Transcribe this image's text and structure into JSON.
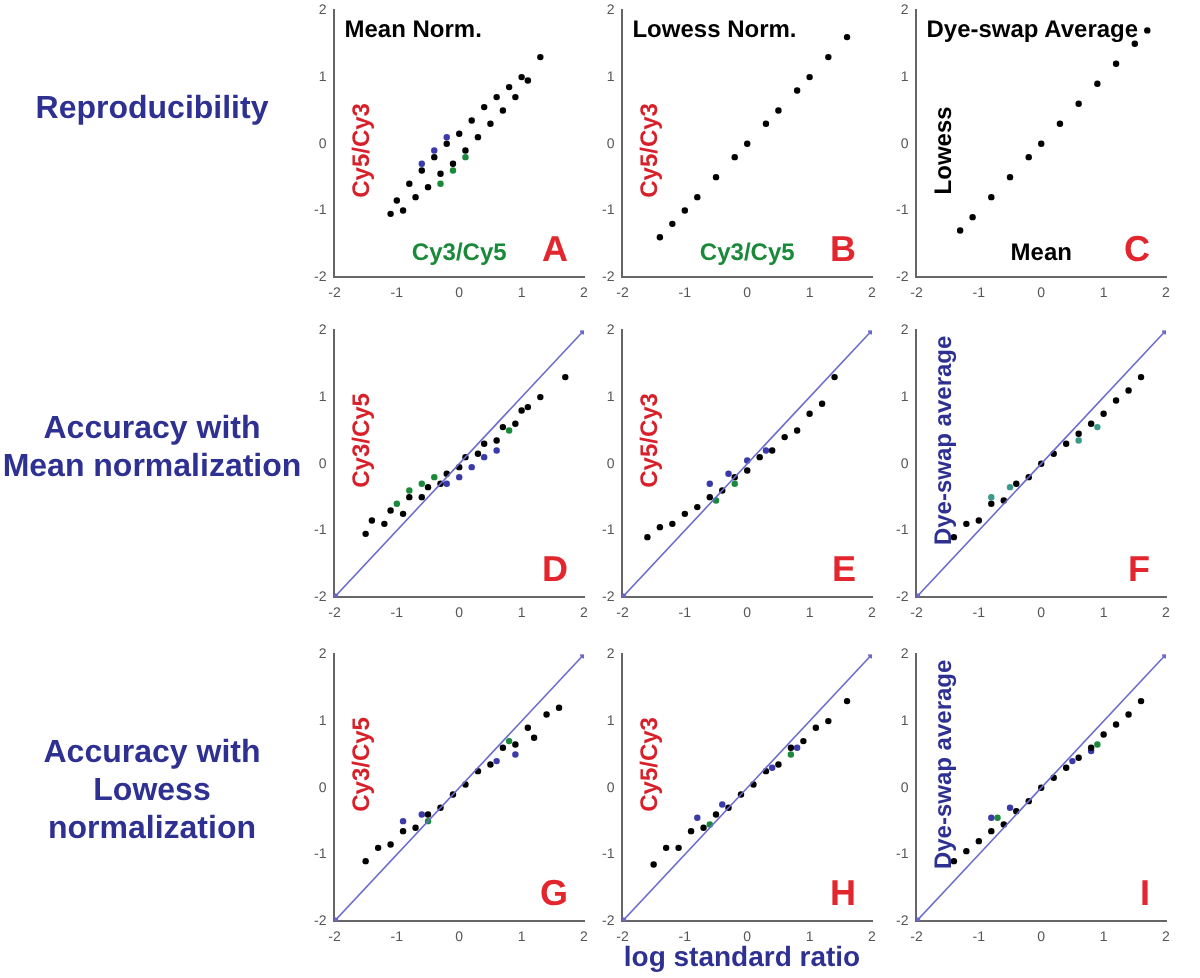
{
  "chart_data": [
    {
      "type": "scatter",
      "title": "Mean Norm.",
      "xlabel": "Cy3/Cy5",
      "ylabel": "Cy5/Cy3",
      "annotations": [
        "A",
        "Reproducibility"
      ],
      "xlim": [
        -2,
        2
      ],
      "ylim": [
        -2,
        2
      ],
      "xticks": [
        -2,
        -1,
        0,
        1,
        2
      ],
      "yticks": [
        -2,
        -1,
        0,
        1,
        2
      ],
      "grid": false,
      "legend": false,
      "marker": "circle",
      "series": [
        {
          "color": "#000000",
          "x": [
            -1.1,
            -1,
            -0.9,
            -0.8,
            -0.7,
            -0.6,
            -0.5,
            -0.4,
            -0.3,
            -0.2,
            -0.1,
            0,
            0.1,
            0.2,
            0.3,
            0.4,
            0.5,
            0.6,
            0.7,
            0.8,
            0.9,
            1.0,
            1.1,
            1.3
          ],
          "values": [
            -1.05,
            -0.85,
            -1.0,
            -0.6,
            -0.8,
            -0.4,
            -0.65,
            -0.2,
            -0.45,
            0,
            -0.3,
            0.15,
            -0.1,
            0.35,
            0.1,
            0.55,
            0.3,
            0.7,
            0.5,
            0.85,
            0.7,
            1.0,
            0.95,
            1.3
          ]
        },
        {
          "color": "#3a3aa8",
          "x": [
            -0.6,
            -0.4,
            -0.2
          ],
          "values": [
            -0.3,
            -0.1,
            0.1
          ]
        },
        {
          "color": "#1a8a3a",
          "x": [
            -0.3,
            -0.1,
            0.1
          ],
          "values": [
            -0.6,
            -0.4,
            -0.2
          ]
        }
      ]
    },
    {
      "type": "scatter",
      "title": "Lowess Norm.",
      "xlabel": "Cy3/Cy5",
      "ylabel": "Cy5/Cy3",
      "annotations": [
        "B"
      ],
      "xlim": [
        -2,
        2
      ],
      "ylim": [
        -2,
        2
      ],
      "xticks": [
        -2,
        -1,
        0,
        1,
        2
      ],
      "yticks": [
        -2,
        -1,
        0,
        1,
        2
      ],
      "grid": false,
      "legend": false,
      "marker": "circle",
      "series": [
        {
          "color": "#000000",
          "x": [
            -1.4,
            -1.2,
            -1,
            -0.8,
            -0.5,
            -0.2,
            0,
            0.3,
            0.5,
            0.8,
            1,
            1.3,
            1.6
          ],
          "values": [
            -1.4,
            -1.2,
            -1,
            -0.8,
            -0.5,
            -0.2,
            0,
            0.3,
            0.5,
            0.8,
            1,
            1.3,
            1.6
          ]
        }
      ]
    },
    {
      "type": "scatter",
      "title": "Dye-swap Average",
      "xlabel": "Mean",
      "ylabel": "Lowess",
      "annotations": [
        "C"
      ],
      "xlim": [
        -2,
        2
      ],
      "ylim": [
        -2,
        2
      ],
      "xticks": [
        -2,
        -1,
        0,
        1,
        2
      ],
      "yticks": [
        -2,
        -1,
        0,
        1,
        2
      ],
      "grid": false,
      "legend": false,
      "marker": "circle",
      "series": [
        {
          "color": "#000000",
          "x": [
            -1.3,
            -1.1,
            -0.8,
            -0.5,
            -0.2,
            0,
            0.3,
            0.6,
            0.9,
            1.2,
            1.5,
            1.7
          ],
          "values": [
            -1.3,
            -1.1,
            -0.8,
            -0.5,
            -0.2,
            0,
            0.3,
            0.6,
            0.9,
            1.2,
            1.5,
            1.7
          ]
        }
      ]
    },
    {
      "type": "scatter",
      "ylabel": "Cy3/Cy5",
      "annotations": [
        "D",
        "Accuracy with Mean normalization"
      ],
      "xlim": [
        -2,
        2
      ],
      "ylim": [
        -2,
        2
      ],
      "xticks": [
        -2,
        -1,
        0,
        1,
        2
      ],
      "yticks": [
        -2,
        -1,
        0,
        1,
        2
      ],
      "grid": false,
      "legend": false,
      "marker": "circle",
      "series": [
        {
          "type": "line",
          "color": "#6a6acc",
          "x": [
            -2,
            2
          ],
          "values": [
            -2,
            2
          ]
        },
        {
          "color": "#000000",
          "x": [
            -1.5,
            -1.4,
            -1.2,
            -1.1,
            -0.9,
            -0.8,
            -0.6,
            -0.5,
            -0.3,
            -0.2,
            0,
            0.1,
            0.3,
            0.4,
            0.6,
            0.7,
            0.9,
            1.0,
            1.1,
            1.3,
            1.7
          ],
          "values": [
            -1.05,
            -0.85,
            -0.9,
            -0.7,
            -0.75,
            -0.5,
            -0.5,
            -0.35,
            -0.3,
            -0.15,
            -0.05,
            0.1,
            0.15,
            0.3,
            0.35,
            0.55,
            0.6,
            0.8,
            0.85,
            1.0,
            1.3
          ]
        },
        {
          "color": "#1a8a3a",
          "x": [
            -1.0,
            -0.8,
            -0.6,
            -0.4,
            0.8
          ],
          "values": [
            -0.6,
            -0.4,
            -0.3,
            -0.2,
            0.5
          ]
        },
        {
          "color": "#3a3aa8",
          "x": [
            -0.2,
            0,
            0.2,
            0.4,
            0.6
          ],
          "values": [
            -0.3,
            -0.2,
            -0.05,
            0.1,
            0.2
          ]
        }
      ]
    },
    {
      "type": "scatter",
      "ylabel": "Cy5/Cy3",
      "annotations": [
        "E"
      ],
      "xlim": [
        -2,
        2
      ],
      "ylim": [
        -2,
        2
      ],
      "xticks": [
        -2,
        -1,
        0,
        1,
        2
      ],
      "yticks": [
        -2,
        -1,
        0,
        1,
        2
      ],
      "grid": false,
      "legend": false,
      "marker": "circle",
      "series": [
        {
          "type": "line",
          "color": "#6a6acc",
          "x": [
            -2,
            2
          ],
          "values": [
            -2,
            2
          ]
        },
        {
          "color": "#000000",
          "x": [
            -1.6,
            -1.4,
            -1.2,
            -1.0,
            -0.8,
            -0.6,
            -0.4,
            -0.2,
            0,
            0.2,
            0.4,
            0.6,
            0.8,
            1.0,
            1.2,
            1.4
          ],
          "values": [
            -1.1,
            -0.95,
            -0.9,
            -0.75,
            -0.65,
            -0.5,
            -0.4,
            -0.2,
            -0.1,
            0.1,
            0.2,
            0.4,
            0.5,
            0.75,
            0.9,
            1.3
          ]
        },
        {
          "color": "#3a3aa8",
          "x": [
            -0.6,
            -0.3,
            0,
            0.3
          ],
          "values": [
            -0.3,
            -0.15,
            0.05,
            0.2
          ]
        },
        {
          "color": "#1a8a3a",
          "x": [
            -0.5,
            -0.2
          ],
          "values": [
            -0.55,
            -0.3
          ]
        }
      ]
    },
    {
      "type": "scatter",
      "ylabel": "Dye-swap average",
      "annotations": [
        "F"
      ],
      "xlim": [
        -2,
        2
      ],
      "ylim": [
        -2,
        2
      ],
      "xticks": [
        -2,
        -1,
        0,
        1,
        2
      ],
      "yticks": [
        -2,
        -1,
        0,
        1,
        2
      ],
      "grid": false,
      "legend": false,
      "marker": "circle",
      "series": [
        {
          "type": "line",
          "color": "#6a6acc",
          "x": [
            -2,
            2
          ],
          "values": [
            -2,
            2
          ]
        },
        {
          "color": "#000000",
          "x": [
            -1.4,
            -1.2,
            -1.0,
            -0.8,
            -0.6,
            -0.4,
            -0.2,
            0,
            0.2,
            0.4,
            0.6,
            0.8,
            1.0,
            1.2,
            1.4,
            1.6
          ],
          "values": [
            -1.1,
            -0.9,
            -0.85,
            -0.6,
            -0.55,
            -0.3,
            -0.2,
            0,
            0.15,
            0.3,
            0.45,
            0.6,
            0.75,
            0.95,
            1.1,
            1.3
          ]
        },
        {
          "color": "#3a9a8a",
          "x": [
            -0.8,
            -0.5,
            0.6,
            0.9
          ],
          "values": [
            -0.5,
            -0.35,
            0.35,
            0.55
          ]
        }
      ]
    },
    {
      "type": "scatter",
      "ylabel": "Cy3/Cy5",
      "annotations": [
        "G",
        "Accuracy with Lowess normalization"
      ],
      "xlim": [
        -2,
        2
      ],
      "ylim": [
        -2,
        2
      ],
      "xticks": [
        -2,
        -1,
        0,
        1,
        2
      ],
      "yticks": [
        -2,
        -1,
        0,
        1,
        2
      ],
      "grid": false,
      "legend": false,
      "marker": "circle",
      "series": [
        {
          "type": "line",
          "color": "#6a6acc",
          "x": [
            -2,
            2
          ],
          "values": [
            -2,
            2
          ]
        },
        {
          "color": "#000000",
          "x": [
            -1.5,
            -1.3,
            -1.1,
            -0.9,
            -0.7,
            -0.5,
            -0.3,
            -0.1,
            0.1,
            0.3,
            0.5,
            0.7,
            0.9,
            1.1,
            1.2,
            1.4,
            1.6
          ],
          "values": [
            -1.1,
            -0.9,
            -0.85,
            -0.65,
            -0.6,
            -0.4,
            -0.3,
            -0.1,
            0.05,
            0.25,
            0.35,
            0.6,
            0.65,
            0.9,
            0.75,
            1.1,
            1.2
          ]
        },
        {
          "color": "#3a3aa8",
          "x": [
            -0.9,
            -0.6,
            0.6,
            0.9
          ],
          "values": [
            -0.5,
            -0.4,
            0.4,
            0.5
          ]
        },
        {
          "color": "#1a8a3a",
          "x": [
            -0.5,
            0.8
          ],
          "values": [
            -0.5,
            0.7
          ]
        }
      ]
    },
    {
      "type": "scatter",
      "ylabel": "Cy5/Cy3",
      "xlabel": "log standard ratio",
      "annotations": [
        "H"
      ],
      "xlim": [
        -2,
        2
      ],
      "ylim": [
        -2,
        2
      ],
      "xticks": [
        -2,
        -1,
        0,
        1,
        2
      ],
      "yticks": [
        -2,
        -1,
        0,
        1,
        2
      ],
      "grid": false,
      "legend": false,
      "marker": "circle",
      "series": [
        {
          "type": "line",
          "color": "#6a6acc",
          "x": [
            -2,
            2
          ],
          "values": [
            -2,
            2
          ]
        },
        {
          "color": "#000000",
          "x": [
            -1.5,
            -1.3,
            -1.1,
            -0.9,
            -0.7,
            -0.5,
            -0.3,
            -0.1,
            0.1,
            0.3,
            0.5,
            0.7,
            0.9,
            1.1,
            1.3,
            1.6
          ],
          "values": [
            -1.15,
            -0.9,
            -0.9,
            -0.65,
            -0.6,
            -0.4,
            -0.3,
            -0.1,
            0.05,
            0.25,
            0.35,
            0.6,
            0.7,
            0.9,
            1.0,
            1.3
          ]
        },
        {
          "color": "#3a3aa8",
          "x": [
            -0.8,
            -0.4,
            0.4,
            0.8
          ],
          "values": [
            -0.45,
            -0.25,
            0.3,
            0.6
          ]
        },
        {
          "color": "#1a8a3a",
          "x": [
            -0.6,
            0.7
          ],
          "values": [
            -0.55,
            0.5
          ]
        }
      ]
    },
    {
      "type": "scatter",
      "ylabel": "Dye-swap average",
      "annotations": [
        "I"
      ],
      "xlim": [
        -2,
        2
      ],
      "ylim": [
        -2,
        2
      ],
      "xticks": [
        -2,
        -1,
        0,
        1,
        2
      ],
      "yticks": [
        -2,
        -1,
        0,
        1,
        2
      ],
      "grid": false,
      "legend": false,
      "marker": "circle",
      "series": [
        {
          "type": "line",
          "color": "#6a6acc",
          "x": [
            -2,
            2
          ],
          "values": [
            -2,
            2
          ]
        },
        {
          "color": "#000000",
          "x": [
            -1.4,
            -1.2,
            -1.0,
            -0.8,
            -0.6,
            -0.4,
            -0.2,
            0,
            0.2,
            0.4,
            0.6,
            0.8,
            1.0,
            1.2,
            1.4,
            1.6
          ],
          "values": [
            -1.1,
            -0.95,
            -0.8,
            -0.65,
            -0.55,
            -0.35,
            -0.2,
            0,
            0.15,
            0.3,
            0.45,
            0.6,
            0.8,
            0.95,
            1.1,
            1.3
          ]
        },
        {
          "color": "#3a3aa8",
          "x": [
            -0.8,
            -0.5,
            0.5,
            0.8
          ],
          "values": [
            -0.45,
            -0.3,
            0.4,
            0.55
          ]
        },
        {
          "color": "#1a8a3a",
          "x": [
            -0.7,
            0.9
          ],
          "values": [
            -0.45,
            0.65
          ]
        }
      ]
    }
  ]
}
